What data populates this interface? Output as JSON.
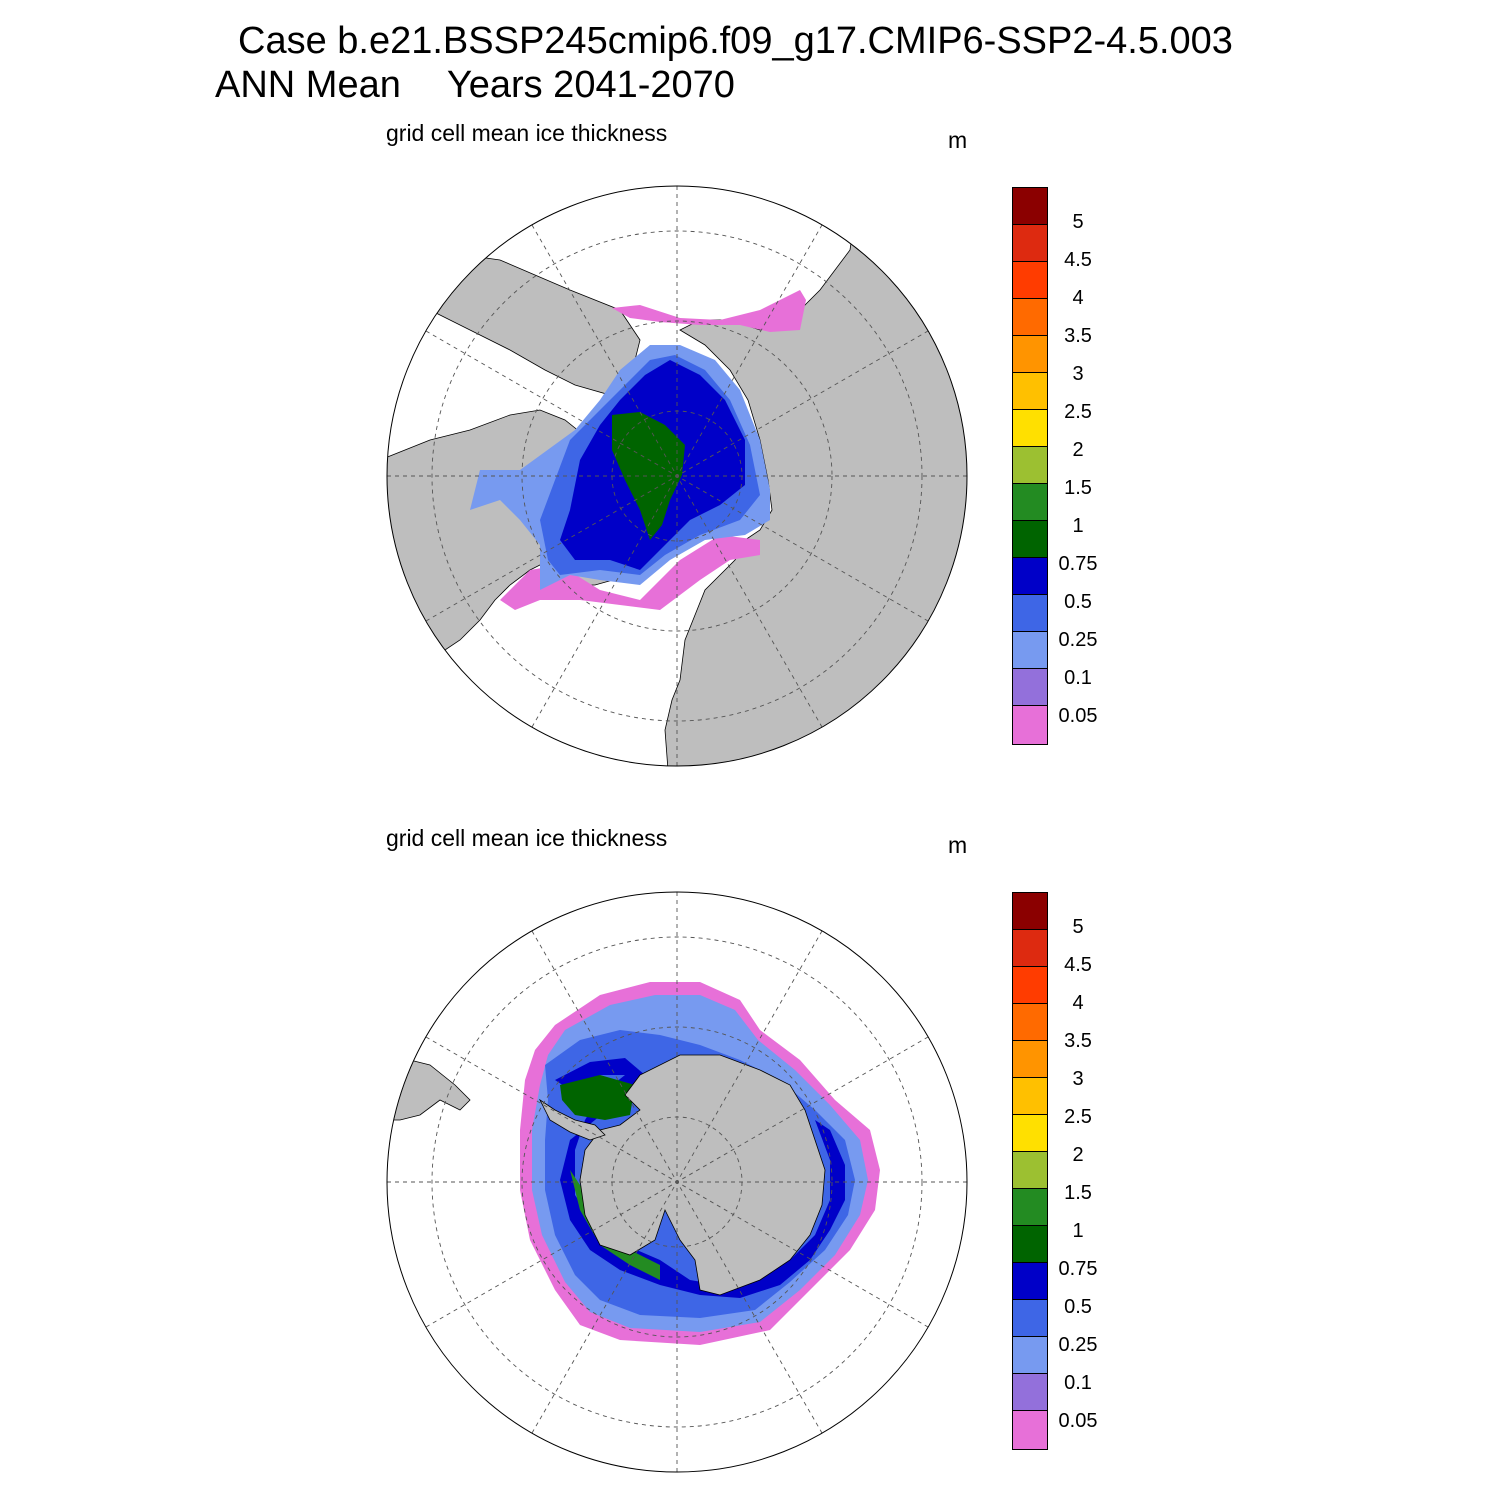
{
  "header": {
    "case_line": "Case b.e21.BSSP245cmip6.f09_g17.CMIP6-SSP2-4.5.003",
    "season": "ANN Mean",
    "years": "Years 2041-2070"
  },
  "colorbar": {
    "colors": [
      "#8b0000",
      "#dd2a10",
      "#ff3c00",
      "#ff6a00",
      "#ff9400",
      "#ffc000",
      "#ffe000",
      "#9cc031",
      "#238b22",
      "#006400",
      "#0000c8",
      "#3e66e6",
      "#779af0",
      "#9370db",
      "#e770d8"
    ],
    "tick_labels": [
      "5",
      "4.5",
      "4",
      "3.5",
      "3",
      "2.5",
      "2",
      "1.5",
      "1",
      "0.75",
      "0.5",
      "0.25",
      "0.1",
      "0.05"
    ]
  },
  "panels": [
    {
      "id": "north",
      "title": "grid cell mean ice thickness",
      "units": "m"
    },
    {
      "id": "south",
      "title": "grid cell mean ice thickness",
      "units": "m"
    }
  ],
  "map_colors": {
    "land": "#bebebe",
    "ocean": "#ffffff",
    "grid": "#555555"
  }
}
